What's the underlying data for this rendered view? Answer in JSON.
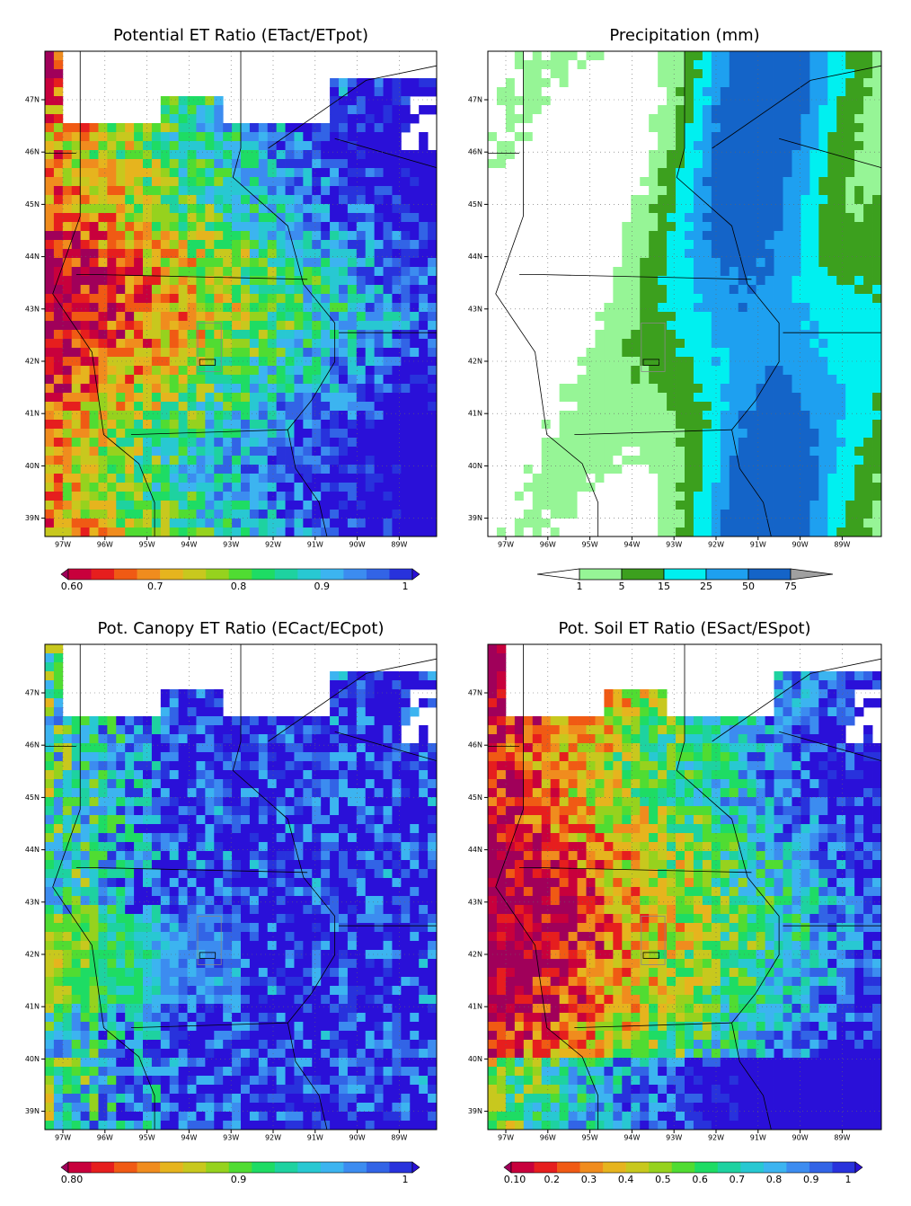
{
  "panels": [
    {
      "title": "Potential ET Ratio (ETact/ETpot)",
      "lat_labels": [
        "47N",
        "46N",
        "45N",
        "44N",
        "43N",
        "42N",
        "41N",
        "40N",
        "39N"
      ],
      "lon_labels": [
        "97W",
        "96W",
        "95W",
        "94W",
        "93W",
        "92W",
        "91W",
        "90W",
        "89W"
      ],
      "colorbar": {
        "labels": [
          "0.60",
          "0.7",
          "0.8",
          "0.9",
          "1"
        ],
        "colors": [
          "#a0005a",
          "#c8003c",
          "#e61e1e",
          "#f05a14",
          "#f08c1e",
          "#e6b41e",
          "#c8c81e",
          "#96d21e",
          "#50dc32",
          "#1edc64",
          "#1ed2a0",
          "#28c8d2",
          "#3cb4f0",
          "#3c8cf0",
          "#3264e6",
          "#2832dc",
          "#2a10d8"
        ]
      }
    },
    {
      "title": "Precipitation (mm)",
      "lat_labels": [
        "47N",
        "46N",
        "45N",
        "44N",
        "43N",
        "42N",
        "41N",
        "40N",
        "39N"
      ],
      "lon_labels": [
        "97W",
        "96W",
        "95W",
        "94W",
        "93W",
        "92W",
        "91W",
        "90W",
        "89W"
      ],
      "colorbar": {
        "labels": [
          "1",
          "5",
          "15",
          "25",
          "50",
          "75"
        ],
        "colors": [
          "#ffffff",
          "#96f596",
          "#3ca01e",
          "#00f0f0",
          "#1ea0f0",
          "#1464c8",
          "#a0a0a0"
        ]
      }
    },
    {
      "title": "Pot. Canopy ET Ratio (ECact/ECpot)",
      "lat_labels": [
        "47N",
        "46N",
        "45N",
        "44N",
        "43N",
        "42N",
        "41N",
        "40N",
        "39N"
      ],
      "lon_labels": [
        "97W",
        "96W",
        "95W",
        "94W",
        "93W",
        "92W",
        "91W",
        "90W",
        "89W"
      ],
      "colorbar": {
        "labels": [
          "0.80",
          "0.9",
          "1"
        ],
        "colors": [
          "#a0005a",
          "#c8003c",
          "#e61e1e",
          "#f05a14",
          "#f08c1e",
          "#e6b41e",
          "#c8c81e",
          "#96d21e",
          "#50dc32",
          "#1edc64",
          "#1ed2a0",
          "#28c8d2",
          "#3cb4f0",
          "#3c8cf0",
          "#3264e6",
          "#2832dc",
          "#2a10d8"
        ]
      }
    },
    {
      "title": "Pot. Soil ET Ratio (ESact/ESpot)",
      "lat_labels": [
        "47N",
        "46N",
        "45N",
        "44N",
        "43N",
        "42N",
        "41N",
        "40N",
        "39N"
      ],
      "lon_labels": [
        "97W",
        "96W",
        "95W",
        "94W",
        "93W",
        "92W",
        "91W",
        "90W",
        "89W"
      ],
      "colorbar": {
        "labels": [
          "0.10",
          "0.2",
          "0.3",
          "0.4",
          "0.5",
          "0.6",
          "0.7",
          "0.8",
          "0.9",
          "1"
        ],
        "colors": [
          "#a0005a",
          "#c8003c",
          "#e61e1e",
          "#f05a14",
          "#f08c1e",
          "#e6b41e",
          "#c8c81e",
          "#96d21e",
          "#50dc32",
          "#1edc64",
          "#1ed2a0",
          "#28c8d2",
          "#3cb4f0",
          "#3c8cf0",
          "#3264e6",
          "#2832dc",
          "#2a10d8"
        ]
      }
    }
  ]
}
